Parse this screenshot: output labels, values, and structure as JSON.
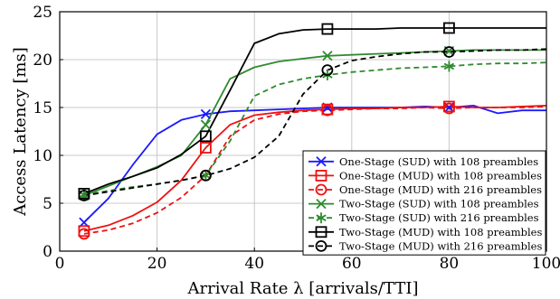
{
  "chart_data": {
    "type": "line",
    "xlabel": "Arrival Rate λ [arrivals/TTI]",
    "ylabel": "Access Latency [ms]",
    "xlim": [
      0,
      100
    ],
    "ylim": [
      0,
      25
    ],
    "x_ticks": [
      0,
      20,
      40,
      60,
      80,
      100
    ],
    "y_ticks": [
      0,
      5,
      10,
      15,
      20,
      25
    ],
    "grid": true,
    "legend_position": "bottom-right",
    "series": [
      {
        "name": "One-Stage (SUD) with 108 preambles",
        "color": "#1a1aff",
        "dash": "solid",
        "marker": "x",
        "x": [
          5,
          10,
          15,
          20,
          25,
          30,
          35,
          40,
          45,
          50,
          55,
          60,
          65,
          70,
          75,
          80,
          85,
          90,
          95,
          100
        ],
        "y": [
          3.0,
          5.5,
          9.0,
          12.2,
          13.7,
          14.3,
          14.6,
          14.7,
          14.8,
          14.9,
          15.0,
          15.0,
          15.0,
          15.0,
          15.1,
          15.0,
          15.2,
          14.4,
          14.7,
          14.7
        ],
        "marker_x": [
          5,
          30,
          55,
          80
        ]
      },
      {
        "name": "One-Stage (MUD) with 108 preambles",
        "color": "#ee1111",
        "dash": "solid",
        "marker": "square",
        "x": [
          5,
          10,
          15,
          20,
          25,
          30,
          35,
          40,
          45,
          50,
          55,
          60,
          65,
          70,
          75,
          80,
          85,
          90,
          95,
          100
        ],
        "y": [
          2.1,
          2.7,
          3.7,
          5.1,
          7.4,
          10.8,
          13.2,
          14.2,
          14.5,
          14.7,
          14.8,
          14.9,
          14.9,
          15.0,
          15.0,
          15.1,
          15.0,
          15.0,
          15.1,
          15.2
        ],
        "marker_x": [
          5,
          30,
          55,
          80
        ]
      },
      {
        "name": "One-Stage (MUD) with 216 preambles",
        "color": "#ee1111",
        "dash": "dashed",
        "marker": "circle",
        "x": [
          5,
          10,
          15,
          20,
          25,
          30,
          35,
          40,
          45,
          50,
          55,
          60,
          65,
          70,
          75,
          80,
          85,
          90,
          95,
          100
        ],
        "y": [
          1.8,
          2.2,
          2.9,
          4.0,
          5.6,
          7.9,
          12.0,
          13.7,
          14.3,
          14.6,
          14.7,
          14.8,
          14.9,
          14.9,
          15.0,
          14.9,
          15.0,
          15.0,
          15.0,
          15.1
        ],
        "marker_x": [
          5,
          30,
          55,
          80
        ]
      },
      {
        "name": "Two-Stage (SUD) with 108 preambles",
        "color": "#2e8b2e",
        "dash": "solid",
        "marker": "x",
        "x": [
          5,
          10,
          15,
          20,
          25,
          30,
          35,
          40,
          45,
          50,
          55,
          60,
          65,
          70,
          75,
          80,
          85,
          90,
          95,
          100
        ],
        "y": [
          5.8,
          6.8,
          7.8,
          8.8,
          10.0,
          13.2,
          18.0,
          19.2,
          19.8,
          20.1,
          20.4,
          20.5,
          20.6,
          20.7,
          20.8,
          20.9,
          21.0,
          21.0,
          21.0,
          21.0
        ],
        "marker_x": [
          5,
          30,
          55,
          80
        ]
      },
      {
        "name": "Two-Stage (SUD) with 216 preambles",
        "color": "#2e8b2e",
        "dash": "dashed",
        "marker": "star",
        "x": [
          5,
          10,
          15,
          20,
          25,
          30,
          35,
          40,
          45,
          50,
          55,
          60,
          65,
          70,
          75,
          80,
          85,
          90,
          95,
          100
        ],
        "y": [
          5.9,
          6.3,
          6.7,
          7.0,
          7.4,
          7.9,
          11.5,
          16.2,
          17.4,
          18.0,
          18.4,
          18.7,
          18.9,
          19.1,
          19.2,
          19.3,
          19.5,
          19.6,
          19.6,
          19.7
        ],
        "marker_x": [
          5,
          30,
          55,
          80
        ]
      },
      {
        "name": "Two-Stage (MUD) with 108 preambles",
        "color": "#000000",
        "dash": "solid",
        "marker": "square",
        "x": [
          5,
          10,
          15,
          20,
          25,
          30,
          35,
          40,
          45,
          50,
          55,
          60,
          65,
          70,
          75,
          80,
          85,
          90,
          95,
          100
        ],
        "y": [
          6.0,
          7.0,
          7.8,
          8.7,
          10.1,
          12.0,
          16.8,
          21.7,
          22.7,
          23.1,
          23.2,
          23.2,
          23.2,
          23.3,
          23.3,
          23.3,
          23.3,
          23.3,
          23.3,
          23.3
        ],
        "marker_x": [
          5,
          30,
          55,
          80
        ]
      },
      {
        "name": "Two-Stage (MUD) with 216 preambles",
        "color": "#000000",
        "dash": "dashed",
        "marker": "circle",
        "x": [
          5,
          10,
          15,
          20,
          25,
          30,
          35,
          40,
          45,
          50,
          55,
          60,
          65,
          70,
          75,
          80,
          85,
          90,
          95,
          100
        ],
        "y": [
          5.8,
          6.2,
          6.6,
          7.0,
          7.4,
          7.9,
          8.6,
          9.8,
          12.0,
          16.4,
          18.9,
          19.9,
          20.3,
          20.6,
          20.8,
          20.8,
          20.9,
          21.0,
          21.0,
          21.1
        ],
        "marker_x": [
          5,
          30,
          55,
          80
        ]
      }
    ]
  }
}
